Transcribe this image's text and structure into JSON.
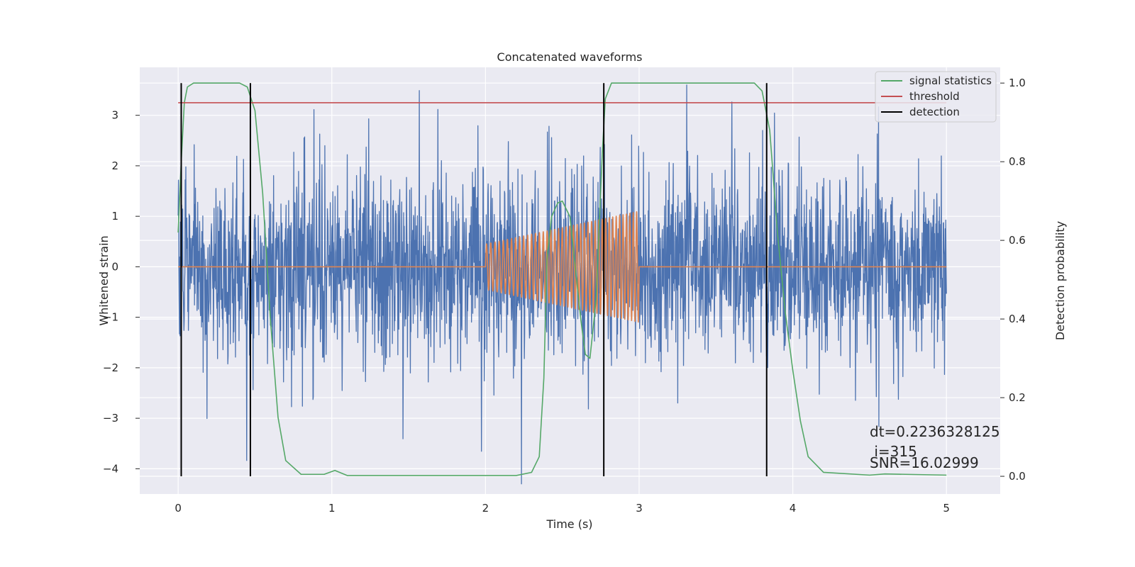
{
  "chart_data": {
    "type": "line",
    "title": "Concatenated waveforms",
    "xlabel": "Time (s)",
    "ylabel": "Whitened strain",
    "y2label": "Detection probability",
    "xlim": [
      -0.25,
      5.35
    ],
    "ylim": [
      -4.5,
      3.95
    ],
    "y2lim": [
      -0.045,
      1.04
    ],
    "x_ticks": [
      0,
      1,
      2,
      3,
      4,
      5
    ],
    "y_ticks": [
      -4,
      -3,
      -2,
      -1,
      0,
      1,
      2,
      3
    ],
    "y2_ticks": [
      0.0,
      0.2,
      0.4,
      0.6,
      0.8,
      1.0
    ],
    "grid": true,
    "legend": {
      "placement": "top-right",
      "entries": [
        {
          "label": "signal statistics",
          "color": "#55a868"
        },
        {
          "label": "threshold",
          "color": "#c44e52"
        },
        {
          "label": "detection",
          "color": "#000000"
        }
      ]
    },
    "series": [
      {
        "name": "whitened-strain",
        "axis": "left",
        "color": "#4c72b0",
        "x_start": 0,
        "x_end": 5,
        "n_points": 2400,
        "std": 0.9,
        "range": [
          -4.3,
          3.6
        ]
      },
      {
        "name": "injected-chirp",
        "axis": "left",
        "color": "#dd8452",
        "x_start": 2.0,
        "x_end": 3.0,
        "amp_start": 0.45,
        "amp_end": 1.1,
        "freq_start": 36,
        "freq_end": 46
      },
      {
        "name": "signal statistics",
        "axis": "right",
        "color": "#55a868",
        "x": [
          0,
          0.02,
          0.04,
          0.06,
          0.1,
          0.4,
          0.45,
          0.5,
          0.55,
          0.6,
          0.65,
          0.7,
          0.8,
          0.95,
          1.02,
          1.1,
          2.2,
          2.3,
          2.35,
          2.38,
          2.4,
          2.43,
          2.47,
          2.5,
          2.55,
          2.62,
          2.65,
          2.68,
          2.72,
          2.76,
          2.78,
          2.82,
          2.9,
          3.75,
          3.8,
          3.85,
          3.9,
          3.95,
          4.0,
          4.05,
          4.1,
          4.2,
          4.5,
          4.6,
          5.0
        ],
        "y": [
          0.62,
          0.8,
          0.95,
          0.99,
          1.0,
          1.0,
          0.99,
          0.93,
          0.72,
          0.4,
          0.15,
          0.04,
          0.005,
          0.005,
          0.015,
          0.002,
          0.002,
          0.01,
          0.05,
          0.25,
          0.55,
          0.66,
          0.695,
          0.7,
          0.66,
          0.4,
          0.31,
          0.3,
          0.45,
          0.82,
          0.96,
          1.0,
          1.0,
          1.0,
          0.98,
          0.88,
          0.62,
          0.42,
          0.27,
          0.14,
          0.05,
          0.01,
          0.003,
          0.006,
          0.003
        ]
      },
      {
        "name": "threshold",
        "axis": "right",
        "color": "#c44e52",
        "x": [
          0,
          5
        ],
        "y": [
          0.95,
          0.95
        ]
      }
    ],
    "detections": [
      0.02,
      0.47,
      2.77,
      3.83
    ],
    "annotations": [
      "dt=0.2236328125",
      " i=315",
      "SNR=16.02999"
    ]
  }
}
